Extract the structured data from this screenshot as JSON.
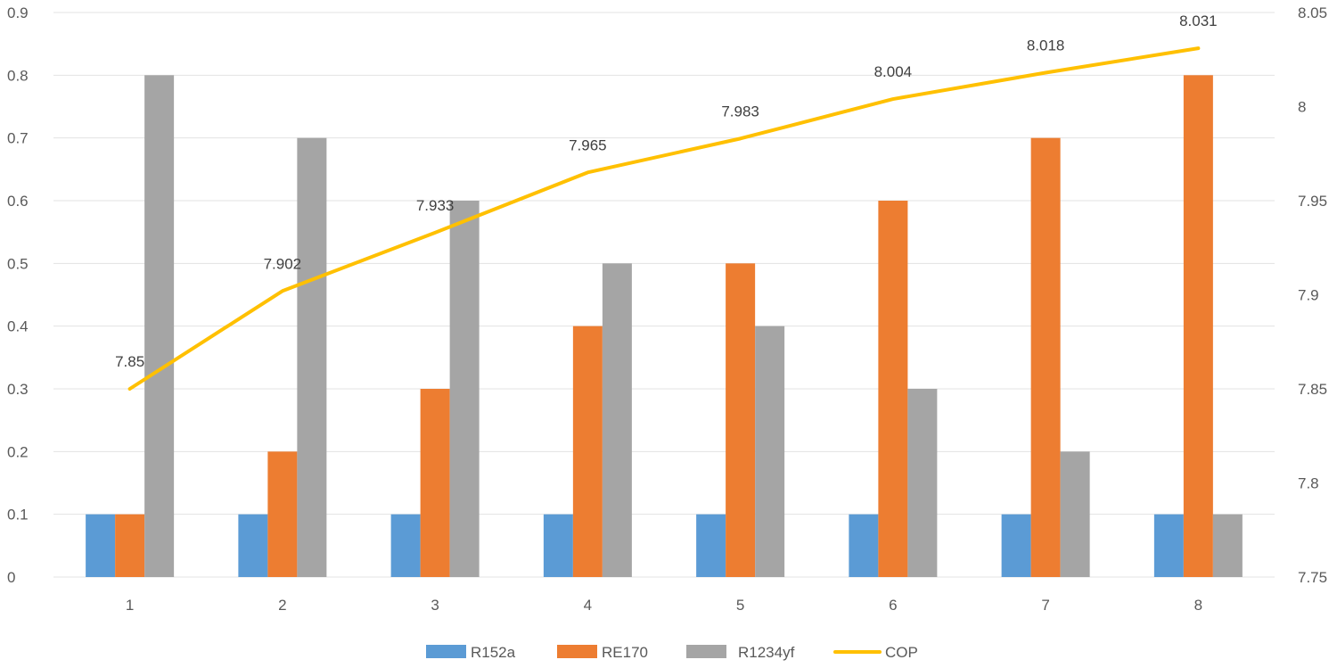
{
  "chart_data": {
    "type": "bar",
    "title": "",
    "xlabel": "",
    "ylabel": "",
    "categories": [
      "1",
      "2",
      "3",
      "4",
      "5",
      "6",
      "7",
      "8"
    ],
    "series": [
      {
        "name": "R152a",
        "type": "bar",
        "axis": "left",
        "color": "#5B9BD5",
        "values": [
          0.1,
          0.1,
          0.1,
          0.1,
          0.1,
          0.1,
          0.1,
          0.1
        ]
      },
      {
        "name": "RE170",
        "type": "bar",
        "axis": "left",
        "color": "#ED7D31",
        "values": [
          0.1,
          0.2,
          0.3,
          0.4,
          0.5,
          0.6,
          0.7,
          0.8
        ]
      },
      {
        "name": "R1234yf",
        "type": "bar",
        "axis": "left",
        "color": "#A5A5A5",
        "values": [
          0.8,
          0.7,
          0.6,
          0.5,
          0.4,
          0.3,
          0.2,
          0.1
        ]
      },
      {
        "name": "COP",
        "type": "line",
        "axis": "right",
        "color": "#FFC000",
        "values": [
          7.85,
          7.902,
          7.933,
          7.965,
          7.983,
          8.004,
          8.018,
          8.031
        ],
        "data_labels": [
          "7.85",
          "7.902",
          "7.933",
          "7.965",
          "7.983",
          "8.004",
          "8.018",
          "8.031"
        ]
      }
    ],
    "ylim": [
      0,
      0.9
    ],
    "y_ticks": [
      "0",
      "0.1",
      "0.2",
      "0.3",
      "0.4",
      "0.5",
      "0.6",
      "0.7",
      "0.8",
      "0.9"
    ],
    "y2lim": [
      7.75,
      8.05
    ],
    "y2_ticks": [
      "7.75",
      "7.8",
      "7.85",
      "7.9",
      "7.95",
      "8",
      "8.05"
    ],
    "grid": true,
    "legend_position": "bottom",
    "legend": [
      "R152a",
      "RE170",
      "R1234yf",
      "COP"
    ]
  }
}
